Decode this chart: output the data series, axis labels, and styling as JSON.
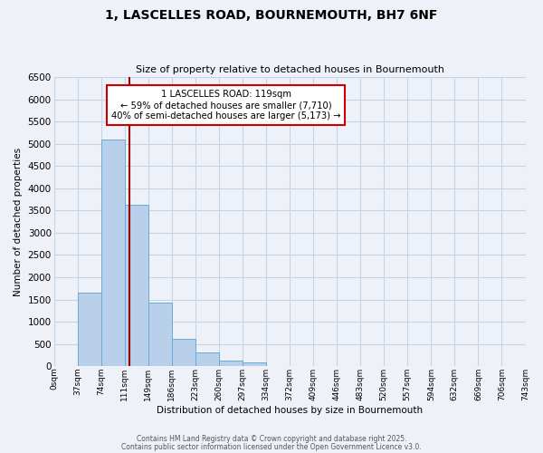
{
  "title": "1, LASCELLES ROAD, BOURNEMOUTH, BH7 6NF",
  "subtitle": "Size of property relative to detached houses in Bournemouth",
  "bar_values": [
    0,
    1650,
    5100,
    3620,
    1430,
    610,
    310,
    130,
    90,
    0,
    0,
    0,
    0,
    0,
    0,
    0,
    0,
    0,
    0,
    0
  ],
  "n_bins": 20,
  "bin_labels": [
    "0sqm",
    "37sqm",
    "74sqm",
    "111sqm",
    "149sqm",
    "186sqm",
    "223sqm",
    "260sqm",
    "297sqm",
    "334sqm",
    "372sqm",
    "409sqm",
    "446sqm",
    "483sqm",
    "520sqm",
    "557sqm",
    "594sqm",
    "632sqm",
    "669sqm",
    "706sqm",
    "743sqm"
  ],
  "bar_color": "#b8d0ea",
  "bar_edge_color": "#6aaad4",
  "vline_bin": 2.54,
  "vline_color": "#990000",
  "annotation_title": "1 LASCELLES ROAD: 119sqm",
  "annotation_line1": "← 59% of detached houses are smaller (7,710)",
  "annotation_line2": "40% of semi-detached houses are larger (5,173) →",
  "annotation_box_color": "#ffffff",
  "annotation_box_edge": "#cc0000",
  "xlabel": "Distribution of detached houses by size in Bournemouth",
  "ylabel": "Number of detached properties",
  "ylim_max": 6500,
  "yticks": [
    0,
    500,
    1000,
    1500,
    2000,
    2500,
    3000,
    3500,
    4000,
    4500,
    5000,
    5500,
    6000,
    6500
  ],
  "footer1": "Contains HM Land Registry data © Crown copyright and database right 2025.",
  "footer2": "Contains public sector information licensed under the Open Government Licence v3.0.",
  "bg_color": "#eef2f8",
  "grid_color": "#c5d5e8"
}
